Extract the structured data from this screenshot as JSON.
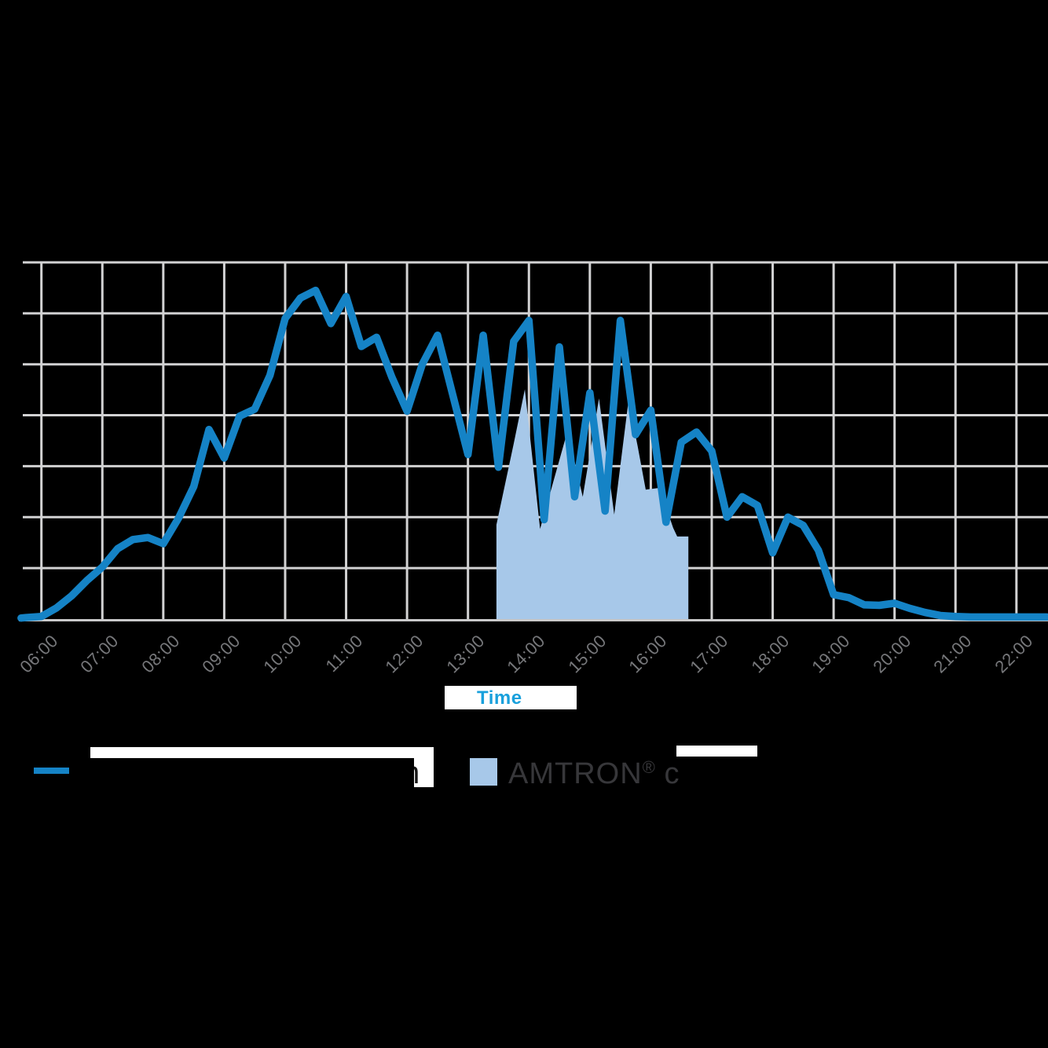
{
  "chart_data": {
    "type": "line+area",
    "xlabel": "Time",
    "x_ticks": [
      "06:00",
      "07:00",
      "08:00",
      "09:00",
      "10:00",
      "11:00",
      "12:00",
      "13:00",
      "14:00",
      "15:00",
      "16:00",
      "17:00",
      "18:00",
      "19:00",
      "20:00",
      "21:00",
      "22:00"
    ],
    "x_range_hours": [
      5.6,
      22.55
    ],
    "y_axis": {
      "labels_visible": false,
      "gridline_rows": 7,
      "range_units": [
        0,
        7
      ]
    },
    "grid": {
      "on": true,
      "grid_color": "#D2D2D3",
      "axis_color": "#C9C9CA"
    },
    "tick_color": "#76777A",
    "xlabel_color": "#18A0DC",
    "series": [
      {
        "name": "pv-power-line",
        "type": "line",
        "color": "#1583C6",
        "stroke_width": 9.5,
        "points": [
          [
            "05:40",
            0.02
          ],
          [
            "05:45",
            0.03
          ],
          [
            "06:00",
            0.05
          ],
          [
            "06:15",
            0.22
          ],
          [
            "06:30",
            0.46
          ],
          [
            "06:45",
            0.76
          ],
          [
            "07:00",
            1.02
          ],
          [
            "07:15",
            1.38
          ],
          [
            "07:30",
            1.56
          ],
          [
            "07:45",
            1.6
          ],
          [
            "08:00",
            1.48
          ],
          [
            "08:15",
            1.98
          ],
          [
            "08:30",
            2.6
          ],
          [
            "08:45",
            3.72
          ],
          [
            "09:00",
            3.16
          ],
          [
            "09:15",
            3.98
          ],
          [
            "09:30",
            4.12
          ],
          [
            "09:45",
            4.78
          ],
          [
            "10:00",
            5.9
          ],
          [
            "10:15",
            6.3
          ],
          [
            "10:30",
            6.45
          ],
          [
            "10:45",
            5.8
          ],
          [
            "11:00",
            6.33
          ],
          [
            "11:15",
            5.35
          ],
          [
            "11:30",
            5.53
          ],
          [
            "11:45",
            4.75
          ],
          [
            "12:00",
            4.08
          ],
          [
            "12:15",
            5.0
          ],
          [
            "12:30",
            5.57
          ],
          [
            "12:45",
            4.4
          ],
          [
            "13:00",
            3.23
          ],
          [
            "13:15",
            5.57
          ],
          [
            "13:30",
            2.98
          ],
          [
            "13:45",
            5.45
          ],
          [
            "14:00",
            5.86
          ],
          [
            "14:15",
            1.95
          ],
          [
            "14:30",
            5.34
          ],
          [
            "14:45",
            2.4
          ],
          [
            "15:00",
            4.44
          ],
          [
            "15:15",
            2.12
          ],
          [
            "15:30",
            5.86
          ],
          [
            "15:45",
            3.62
          ],
          [
            "16:00",
            4.1
          ],
          [
            "16:15",
            1.9
          ],
          [
            "16:30",
            3.47
          ],
          [
            "16:45",
            3.67
          ],
          [
            "17:00",
            3.3
          ],
          [
            "17:15",
            2.0
          ],
          [
            "17:30",
            2.4
          ],
          [
            "17:45",
            2.23
          ],
          [
            "18:00",
            1.3
          ],
          [
            "18:15",
            2.0
          ],
          [
            "18:30",
            1.84
          ],
          [
            "18:45",
            1.35
          ],
          [
            "19:00",
            0.48
          ],
          [
            "19:15",
            0.42
          ],
          [
            "19:30",
            0.28
          ],
          [
            "19:45",
            0.27
          ],
          [
            "20:00",
            0.31
          ],
          [
            "20:15",
            0.21
          ],
          [
            "20:30",
            0.13
          ],
          [
            "20:45",
            0.07
          ],
          [
            "21:00",
            0.05
          ],
          [
            "21:15",
            0.04
          ],
          [
            "21:30",
            0.04
          ],
          [
            "21:45",
            0.04
          ],
          [
            "22:00",
            0.04
          ],
          [
            "22:15",
            0.04
          ],
          [
            "22:30",
            0.04
          ]
        ]
      },
      {
        "name": "amtron-charging-area",
        "type": "area",
        "color": "#A7C8E9",
        "baseline": 0,
        "points": [
          [
            "13:28",
            1.85
          ],
          [
            "13:45",
            3.44
          ],
          [
            "13:56",
            4.51
          ],
          [
            "14:11",
            1.77
          ],
          [
            "14:38",
            3.69
          ],
          [
            "14:53",
            2.4
          ],
          [
            "15:09",
            4.33
          ],
          [
            "15:24",
            2.05
          ],
          [
            "15:38",
            4.28
          ],
          [
            "15:47",
            3.4
          ],
          [
            "15:55",
            2.54
          ],
          [
            "16:07",
            2.57
          ],
          [
            "16:15",
            2.2
          ],
          [
            "16:22",
            1.79
          ],
          [
            "16:26",
            1.62
          ],
          [
            "16:37",
            1.62
          ]
        ]
      }
    ]
  },
  "legend": {
    "items": [
      {
        "swatch": "line",
        "color": "#1583C6",
        "visible_fragment": "m"
      },
      {
        "swatch": "area",
        "color": "#A7C8E9",
        "brand": "AMTRON",
        "reg": "®",
        "tail": " c"
      }
    ]
  }
}
